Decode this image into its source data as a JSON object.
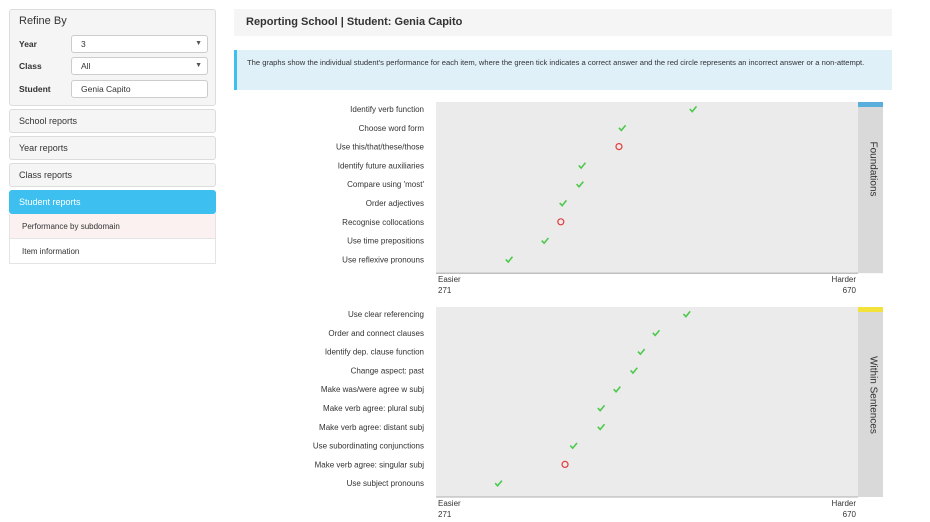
{
  "refine": {
    "title": "Refine By",
    "year_label": "Year",
    "year_value": "3",
    "class_label": "Class",
    "class_value": "All",
    "student_label": "Student",
    "student_value": "Genia Capito"
  },
  "nav": {
    "school_reports": "School reports",
    "year_reports": "Year reports",
    "class_reports": "Class reports",
    "student_reports": "Student reports",
    "sub_items": [
      "Performance by subdomain",
      "Item information"
    ]
  },
  "header": {
    "title": "Reporting School | Student: Genia Capito"
  },
  "info": {
    "text": "The graphs show the individual student's performance for each item, where the green tick indicates a correct answer and the red circle represents an incorrect answer or a non-attempt."
  },
  "colors": {
    "correct": "#4cc94c",
    "incorrect": "#e03c3c",
    "accent": "#3dbff0",
    "foundations_tab": "#5aaedc",
    "within_tab": "#f2e23a"
  },
  "charts": [
    {
      "subdomain": "Foundations",
      "easier_label": "Easier",
      "harder_label": "Harder",
      "min": 271,
      "max": 670,
      "min_label": "271",
      "max_label": "670",
      "items": [
        {
          "label": "Identify verb function",
          "difficulty": 514,
          "correct": true
        },
        {
          "label": "Choose word form",
          "difficulty": 447,
          "correct": true
        },
        {
          "label": "Use this/that/these/those",
          "difficulty": 444,
          "correct": false
        },
        {
          "label": "Identify future auxiliaries",
          "difficulty": 409,
          "correct": true
        },
        {
          "label": "Compare using 'most'",
          "difficulty": 407,
          "correct": true
        },
        {
          "label": "Order adjectives",
          "difficulty": 391,
          "correct": true
        },
        {
          "label": "Recognise collocations",
          "difficulty": 389,
          "correct": false
        },
        {
          "label": "Use time prepositions",
          "difficulty": 374,
          "correct": true
        },
        {
          "label": "Use reflexive pronouns",
          "difficulty": 340,
          "correct": true
        }
      ]
    },
    {
      "subdomain": "Within Sentences",
      "easier_label": "Easier",
      "harder_label": "Harder",
      "min": 271,
      "max": 670,
      "min_label": "271",
      "max_label": "670",
      "items": [
        {
          "label": "Use clear referencing",
          "difficulty": 508,
          "correct": true
        },
        {
          "label": "Order and connect clauses",
          "difficulty": 479,
          "correct": true
        },
        {
          "label": "Identify dep. clause function",
          "difficulty": 465,
          "correct": true
        },
        {
          "label": "Change aspect: past",
          "difficulty": 458,
          "correct": true
        },
        {
          "label": "Make was/were agree w subj",
          "difficulty": 442,
          "correct": true
        },
        {
          "label": "Make verb agree: plural subj",
          "difficulty": 427,
          "correct": true
        },
        {
          "label": "Make verb agree: distant subj",
          "difficulty": 427,
          "correct": true
        },
        {
          "label": "Use subordinating conjunctions",
          "difficulty": 401,
          "correct": true
        },
        {
          "label": "Make verb agree: singular subj",
          "difficulty": 393,
          "correct": false
        },
        {
          "label": "Use subject pronouns",
          "difficulty": 330,
          "correct": true
        }
      ]
    }
  ]
}
